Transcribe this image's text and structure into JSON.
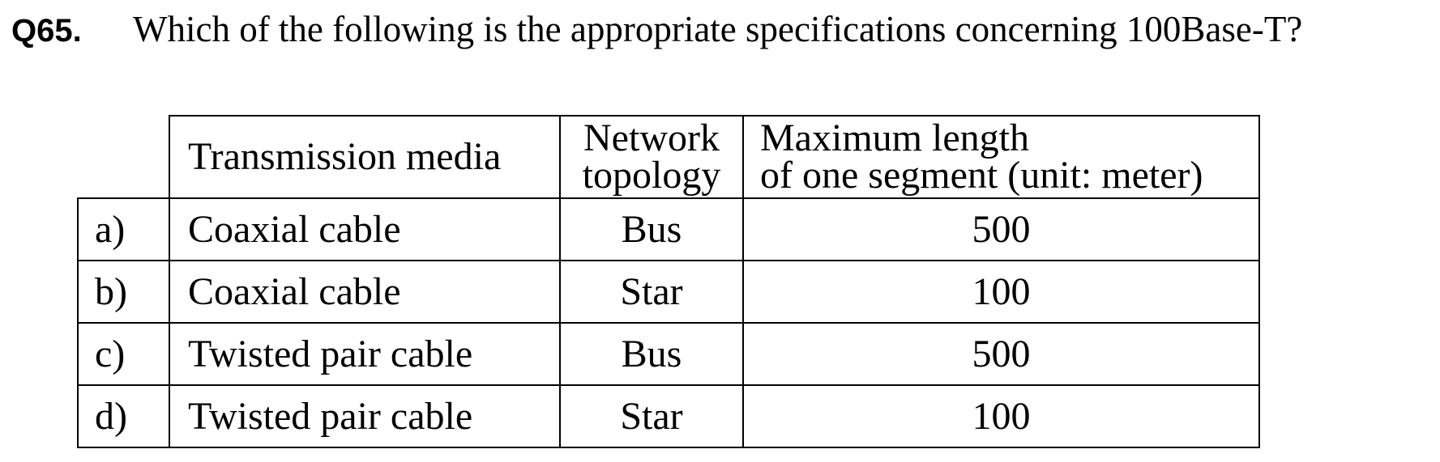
{
  "question": {
    "number": "Q65.",
    "text": "Which of the following is the appropriate specifications concerning 100Base-T?"
  },
  "table": {
    "headers": {
      "media": "Transmission media",
      "topology_line1": "Network",
      "topology_line2": "topology",
      "length_line1": "Maximum length",
      "length_line2": "of one segment (unit: meter)"
    },
    "rows": [
      {
        "label": "a)",
        "media": "Coaxial cable",
        "topology": "Bus",
        "length": "500"
      },
      {
        "label": "b)",
        "media": "Coaxial cable",
        "topology": "Star",
        "length": "100"
      },
      {
        "label": "c)",
        "media": "Twisted pair cable",
        "topology": "Bus",
        "length": "500"
      },
      {
        "label": "d)",
        "media": "Twisted pair cable",
        "topology": "Star",
        "length": "100"
      }
    ]
  }
}
